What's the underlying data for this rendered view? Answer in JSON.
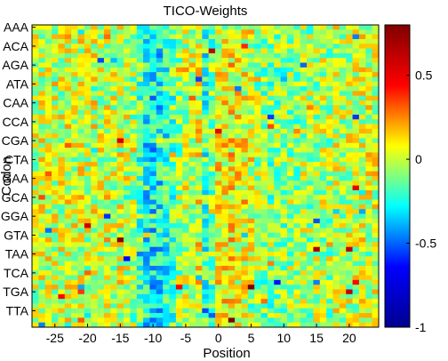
{
  "chart_data": {
    "type": "heatmap",
    "title": "TICO-Weights",
    "xlabel": "Position",
    "ylabel": "Codon",
    "x_range": [
      -28,
      24
    ],
    "x_ticks": [
      -25,
      -20,
      -15,
      -10,
      -5,
      0,
      5,
      10,
      15,
      20
    ],
    "y_tick_labels": [
      "AAA",
      "ACA",
      "AGA",
      "ATA",
      "CAA",
      "CCA",
      "CGA",
      "CTA",
      "GAA",
      "GCA",
      "GGA",
      "GTA",
      "TAA",
      "TCA",
      "TGA",
      "TTA"
    ],
    "colorbar": {
      "range": [
        -1,
        0.8
      ],
      "ticks": [
        -1,
        -0.5,
        0,
        0.5
      ],
      "colormap": "jet",
      "colormap_stops": [
        "#00008f",
        "#0000ff",
        "#00ffff",
        "#ffff00",
        "#ff0000",
        "#800000"
      ]
    },
    "grid": false,
    "rows_per_label": 4,
    "column_means": {
      "positions": [
        -28,
        -27,
        -26,
        -25,
        -24,
        -23,
        -22,
        -21,
        -20,
        -19,
        -18,
        -17,
        -16,
        -15,
        -14,
        -13,
        -12,
        -11,
        -10,
        -9,
        -8,
        -7,
        -6,
        -5,
        -4,
        -3,
        -2,
        -1,
        0,
        1,
        2,
        3,
        4,
        5,
        6,
        7,
        8,
        9,
        10,
        11,
        12,
        13,
        14,
        15,
        16,
        17,
        18,
        19,
        20,
        21,
        22,
        23,
        24
      ],
      "values": [
        0.02,
        0.05,
        0.03,
        0.04,
        0.02,
        0.06,
        0.03,
        0.04,
        0.02,
        0.05,
        0.03,
        0.06,
        0.02,
        0.04,
        0.01,
        -0.05,
        -0.18,
        -0.3,
        -0.35,
        -0.32,
        -0.25,
        -0.15,
        -0.05,
        0.02,
        0.05,
        0.08,
        -0.2,
        -0.1,
        0.1,
        0.12,
        0.15,
        0.1,
        0.08,
        0.05,
        -0.05,
        -0.08,
        -0.1,
        -0.08,
        -0.1,
        -0.05,
        -0.08,
        -0.03,
        -0.05,
        -0.02,
        0.0,
        -0.03,
        0.02,
        0.0,
        0.03,
        0.02,
        0.04,
        0.03,
        0.05
      ]
    }
  }
}
